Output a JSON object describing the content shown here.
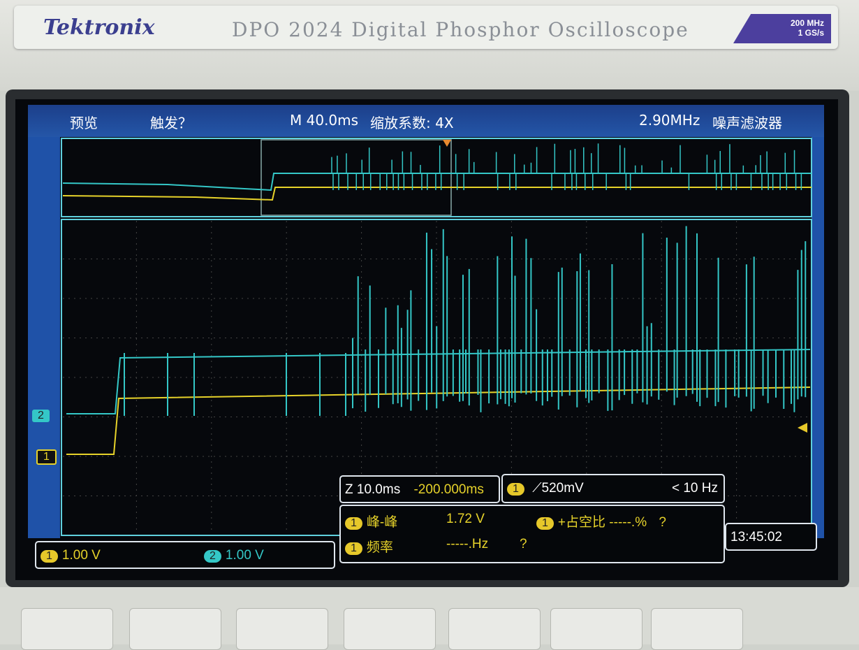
{
  "device": {
    "brand": "Tektronix",
    "model": "DPO 2024 Digital Phosphor Oscilloscope",
    "spec_line1": "200 MHz",
    "spec_line2": "1 GS/s"
  },
  "title_bar": {
    "mode": "预览",
    "trigger_status": "触发？",
    "timebase": "M 40.0ms",
    "zoom_factor": "缩放系数: 4X",
    "filter_freq": "2.90MHz",
    "filter_label": "噪声滤波器"
  },
  "channels": [
    {
      "id": "1",
      "color": "#e6d22a",
      "scale": "1.00 V"
    },
    {
      "id": "2",
      "color": "#34c7c7",
      "scale": "1.00 V"
    }
  ],
  "zoom_readout": {
    "scale": "Z 10.0ms",
    "position": "-200.000ms"
  },
  "trigger_readout": {
    "source": "1",
    "level": "520mV",
    "freq": "< 10 Hz"
  },
  "measurements": [
    {
      "source": "1",
      "label": "峰-峰",
      "value": "1.72 V"
    },
    {
      "source": "1",
      "label": "+占空比",
      "value": "-----.%",
      "status": "?"
    },
    {
      "source": "1",
      "label": "频率",
      "value": "-----.Hz",
      "status": "?"
    }
  ],
  "clock": "13:45:02"
}
